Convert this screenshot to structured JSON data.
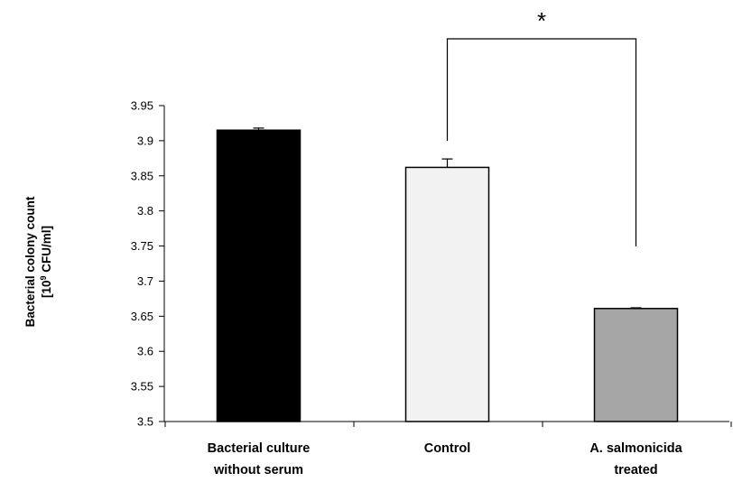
{
  "chart_data": {
    "type": "bar",
    "categories": [
      [
        "Bacterial culture",
        "without serum"
      ],
      [
        "Control"
      ],
      [
        "A. salmonicida",
        "treated"
      ]
    ],
    "values": [
      3.915,
      3.862,
      3.661
    ],
    "errors": [
      0.003,
      0.012,
      0.001
    ],
    "colors": [
      "#000000",
      "#f2f2f2",
      "#a6a6a6"
    ],
    "ylabel": [
      "Bacterial colony count",
      "[10",
      "9",
      " CFU/ml]"
    ],
    "ylim": [
      3.5,
      3.95
    ],
    "yticks": [
      "3.5",
      "3.55",
      "3.6",
      "3.65",
      "3.7",
      "3.75",
      "3.8",
      "3.85",
      "3.9",
      "3.95"
    ],
    "grid": false,
    "legend": "none",
    "significance": {
      "between": [
        1,
        2
      ],
      "label": "*"
    }
  }
}
